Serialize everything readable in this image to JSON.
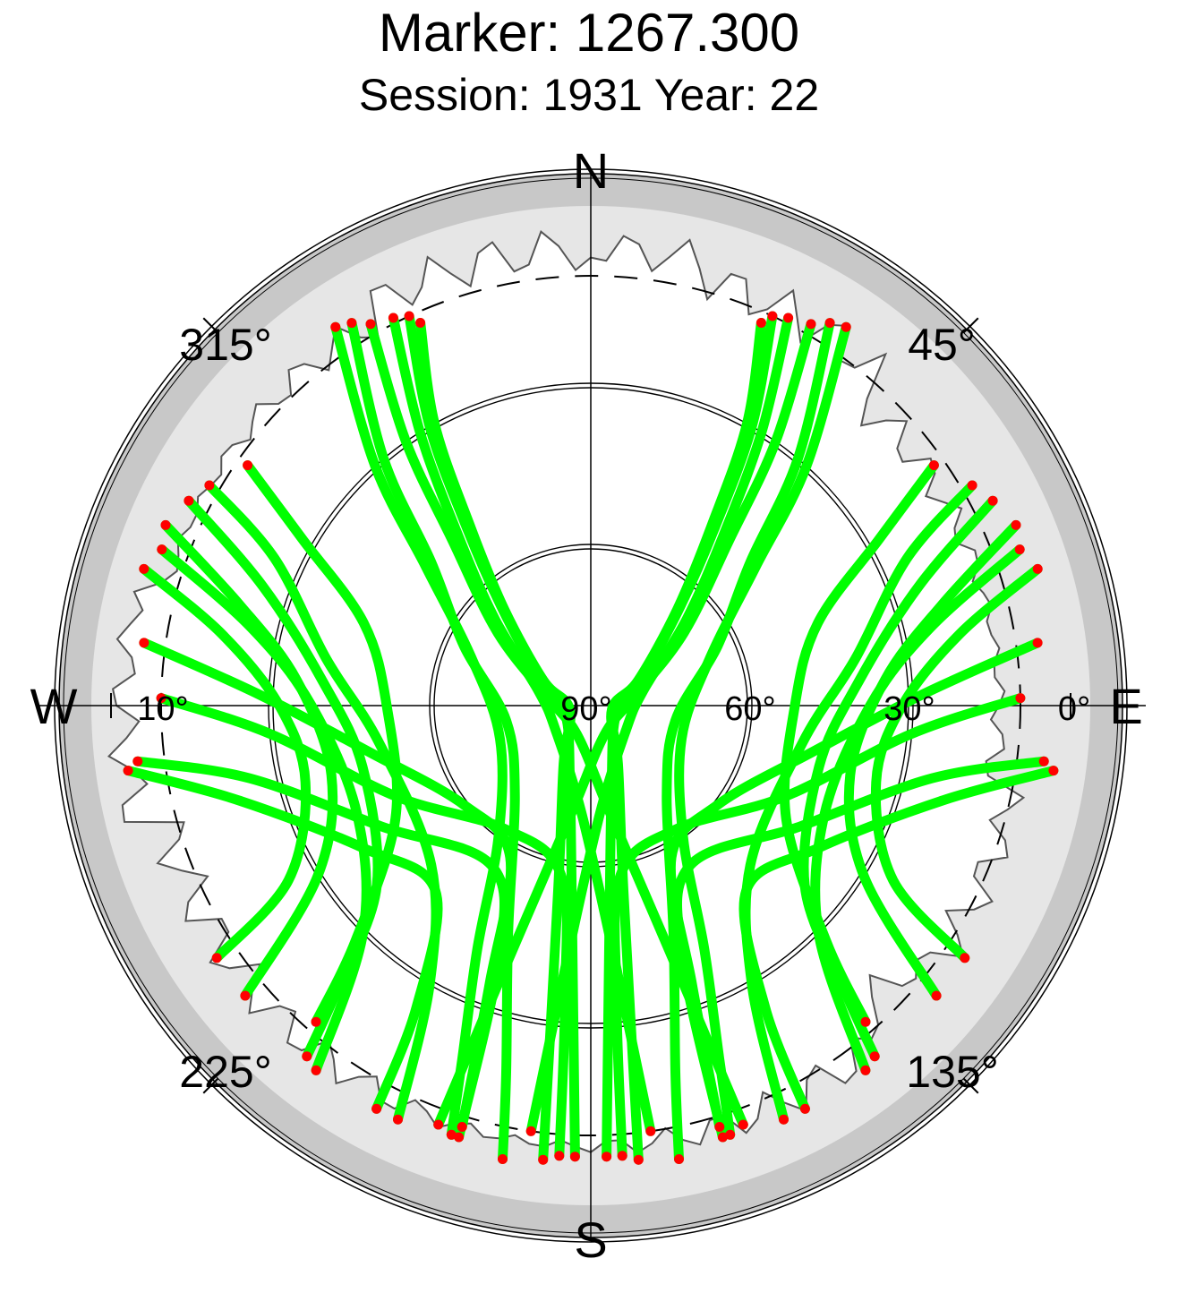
{
  "chart_data": {
    "type": "scatter",
    "subtype": "polar-skyplot",
    "title": "Marker: 1267.300",
    "subtitle": "Session: 1931 Year: 22",
    "azimuth_labels": {
      "north": "N",
      "east": "E",
      "south": "S",
      "west": "W"
    },
    "azimuth_ticks": [
      {
        "azimuth": 45,
        "label": "45°"
      },
      {
        "azimuth": 135,
        "label": "135°"
      },
      {
        "azimuth": 225,
        "label": "225°"
      },
      {
        "azimuth": 315,
        "label": "315°"
      }
    ],
    "elevation_ticks": [
      {
        "elevation": 90,
        "label": "90°"
      },
      {
        "elevation": 60,
        "label": "60°"
      },
      {
        "elevation": 30,
        "label": "30°"
      },
      {
        "elevation": 0,
        "label": "0°"
      },
      {
        "elevation": 10,
        "label": "10°"
      }
    ],
    "elevation_range": [
      -10,
      90
    ],
    "cutoff_elevation": 10,
    "grid": true,
    "colors": {
      "track": "#00ff00",
      "endpoint": "#ff0000",
      "outer_ring": "#c8c8c8",
      "horizon_mask": "#e6e6e6",
      "axis": "#000000"
    },
    "tracks": [
      {
        "points": [
          [
            330,
            8
          ],
          [
            325,
            30
          ],
          [
            320,
            50
          ],
          [
            308,
            68
          ],
          [
            280,
            82
          ],
          [
            205,
            84
          ],
          [
            170,
            70
          ],
          [
            162,
            40
          ],
          [
            160,
            7
          ]
        ]
      },
      {
        "points": [
          [
            328,
            6
          ],
          [
            320,
            30
          ],
          [
            312,
            50
          ],
          [
            295,
            64
          ],
          [
            260,
            74
          ],
          [
            220,
            68
          ],
          [
            200,
            45
          ],
          [
            193,
            20
          ],
          [
            191,
            4
          ]
        ]
      },
      {
        "points": [
          [
            333,
            9
          ],
          [
            328,
            30
          ],
          [
            322,
            50
          ],
          [
            312,
            66
          ],
          [
            285,
            80
          ],
          [
            235,
            82
          ],
          [
            185,
            70
          ],
          [
            175,
            45
          ],
          [
            172,
            10
          ]
        ]
      },
      {
        "points": [
          [
            326,
            5
          ],
          [
            318,
            30
          ],
          [
            310,
            50
          ],
          [
            292,
            66
          ],
          [
            250,
            72
          ],
          [
            215,
            60
          ],
          [
            205,
            40
          ],
          [
            200,
            20
          ],
          [
            198,
            6
          ]
        ]
      },
      {
        "points": [
          [
            335,
            10
          ],
          [
            330,
            30
          ],
          [
            325,
            50
          ],
          [
            318,
            65
          ],
          [
            295,
            80
          ],
          [
            250,
            85
          ],
          [
            195,
            75
          ],
          [
            185,
            50
          ],
          [
            182,
            6
          ]
        ]
      },
      {
        "points": [
          [
            336,
            12
          ],
          [
            331,
            30
          ],
          [
            326,
            50
          ],
          [
            318,
            66
          ],
          [
            298,
            80
          ],
          [
            260,
            86
          ],
          [
            205,
            78
          ],
          [
            190,
            55
          ],
          [
            186,
            5
          ]
        ]
      },
      {
        "points": [
          [
            300,
            8
          ],
          [
            295,
            25
          ],
          [
            280,
            40
          ],
          [
            260,
            50
          ],
          [
            225,
            48
          ],
          [
            210,
            30
          ],
          [
            205,
            5
          ]
        ]
      },
      {
        "points": [
          [
            290,
            5
          ],
          [
            283,
            25
          ],
          [
            270,
            38
          ],
          [
            245,
            42
          ],
          [
            225,
            30
          ],
          [
            217,
            5
          ]
        ]
      },
      {
        "points": [
          [
            297,
            6
          ],
          [
            290,
            25
          ],
          [
            275,
            40
          ],
          [
            255,
            46
          ],
          [
            230,
            38
          ],
          [
            222,
            20
          ],
          [
            219,
            6
          ]
        ]
      },
      {
        "points": [
          [
            293,
            4
          ],
          [
            286,
            22
          ],
          [
            275,
            35
          ],
          [
            255,
            40
          ],
          [
            238,
            30
          ],
          [
            230,
            6
          ]
        ]
      },
      {
        "points": [
          [
            287,
            3
          ],
          [
            281,
            20
          ],
          [
            270,
            32
          ],
          [
            255,
            35
          ],
          [
            240,
            25
          ],
          [
            236,
            6
          ]
        ]
      },
      {
        "points": [
          [
            305,
            12
          ],
          [
            300,
            28
          ],
          [
            290,
            45
          ],
          [
            270,
            52
          ],
          [
            240,
            48
          ],
          [
            225,
            28
          ],
          [
            221,
            12
          ]
        ]
      },
      {
        "points": [
          [
            271,
            10
          ],
          [
            265,
            30
          ],
          [
            245,
            50
          ],
          [
            215,
            62
          ],
          [
            190,
            58
          ],
          [
            185,
            35
          ],
          [
            184,
            6
          ]
        ]
      },
      {
        "points": [
          [
            263,
            5
          ],
          [
            258,
            25
          ],
          [
            240,
            45
          ],
          [
            212,
            55
          ],
          [
            200,
            40
          ],
          [
            197,
            6
          ]
        ]
      },
      {
        "points": [
          [
            262,
            3
          ],
          [
            255,
            22
          ],
          [
            238,
            40
          ],
          [
            220,
            45
          ],
          [
            210,
            25
          ],
          [
            208,
            5
          ]
        ]
      },
      {
        "points": [
          [
            278,
            6
          ],
          [
            272,
            28
          ],
          [
            258,
            48
          ],
          [
            232,
            60
          ],
          [
            208,
            58
          ],
          [
            200,
            35
          ],
          [
            197,
            8
          ]
        ]
      },
      {
        "points": [
          [
            30,
            8
          ],
          [
            35,
            30
          ],
          [
            40,
            50
          ],
          [
            52,
            68
          ],
          [
            80,
            82
          ],
          [
            155,
            84
          ],
          [
            190,
            70
          ],
          [
            198,
            40
          ],
          [
            200,
            7
          ]
        ]
      },
      {
        "points": [
          [
            32,
            6
          ],
          [
            40,
            30
          ],
          [
            48,
            50
          ],
          [
            65,
            64
          ],
          [
            100,
            74
          ],
          [
            140,
            68
          ],
          [
            160,
            45
          ],
          [
            167,
            20
          ],
          [
            169,
            4
          ]
        ]
      },
      {
        "points": [
          [
            27,
            9
          ],
          [
            32,
            30
          ],
          [
            38,
            50
          ],
          [
            48,
            66
          ],
          [
            75,
            80
          ],
          [
            125,
            82
          ],
          [
            175,
            70
          ],
          [
            185,
            45
          ],
          [
            188,
            10
          ]
        ]
      },
      {
        "points": [
          [
            34,
            5
          ],
          [
            42,
            30
          ],
          [
            50,
            50
          ],
          [
            68,
            66
          ],
          [
            110,
            72
          ],
          [
            145,
            60
          ],
          [
            155,
            40
          ],
          [
            160,
            20
          ],
          [
            162,
            6
          ]
        ]
      },
      {
        "points": [
          [
            25,
            10
          ],
          [
            30,
            30
          ],
          [
            35,
            50
          ],
          [
            42,
            65
          ],
          [
            65,
            80
          ],
          [
            110,
            85
          ],
          [
            165,
            75
          ],
          [
            175,
            50
          ],
          [
            178,
            6
          ]
        ]
      },
      {
        "points": [
          [
            24,
            12
          ],
          [
            29,
            30
          ],
          [
            34,
            50
          ],
          [
            42,
            66
          ],
          [
            62,
            80
          ],
          [
            100,
            86
          ],
          [
            155,
            78
          ],
          [
            170,
            55
          ],
          [
            174,
            5
          ]
        ]
      },
      {
        "points": [
          [
            60,
            8
          ],
          [
            65,
            25
          ],
          [
            80,
            40
          ],
          [
            100,
            50
          ],
          [
            135,
            48
          ],
          [
            150,
            30
          ],
          [
            155,
            5
          ]
        ]
      },
      {
        "points": [
          [
            70,
            5
          ],
          [
            77,
            25
          ],
          [
            90,
            38
          ],
          [
            115,
            42
          ],
          [
            135,
            30
          ],
          [
            143,
            5
          ]
        ]
      },
      {
        "points": [
          [
            63,
            6
          ],
          [
            70,
            25
          ],
          [
            85,
            40
          ],
          [
            105,
            46
          ],
          [
            130,
            38
          ],
          [
            138,
            20
          ],
          [
            141,
            6
          ]
        ]
      },
      {
        "points": [
          [
            67,
            4
          ],
          [
            74,
            22
          ],
          [
            85,
            35
          ],
          [
            105,
            40
          ],
          [
            122,
            30
          ],
          [
            130,
            6
          ]
        ]
      },
      {
        "points": [
          [
            73,
            3
          ],
          [
            79,
            20
          ],
          [
            90,
            32
          ],
          [
            105,
            35
          ],
          [
            120,
            25
          ],
          [
            124,
            6
          ]
        ]
      },
      {
        "points": [
          [
            55,
            12
          ],
          [
            60,
            28
          ],
          [
            70,
            45
          ],
          [
            90,
            52
          ],
          [
            120,
            48
          ],
          [
            135,
            28
          ],
          [
            139,
            12
          ]
        ]
      },
      {
        "points": [
          [
            89,
            10
          ],
          [
            95,
            30
          ],
          [
            115,
            50
          ],
          [
            145,
            62
          ],
          [
            170,
            58
          ],
          [
            175,
            35
          ],
          [
            176,
            6
          ]
        ]
      },
      {
        "points": [
          [
            97,
            5
          ],
          [
            102,
            25
          ],
          [
            120,
            45
          ],
          [
            148,
            55
          ],
          [
            160,
            40
          ],
          [
            163,
            6
          ]
        ]
      },
      {
        "points": [
          [
            98,
            3
          ],
          [
            105,
            22
          ],
          [
            122,
            40
          ],
          [
            140,
            45
          ],
          [
            150,
            25
          ],
          [
            152,
            5
          ]
        ]
      },
      {
        "points": [
          [
            82,
            6
          ],
          [
            88,
            28
          ],
          [
            102,
            48
          ],
          [
            128,
            60
          ],
          [
            152,
            58
          ],
          [
            160,
            35
          ],
          [
            163,
            8
          ]
        ]
      }
    ]
  }
}
